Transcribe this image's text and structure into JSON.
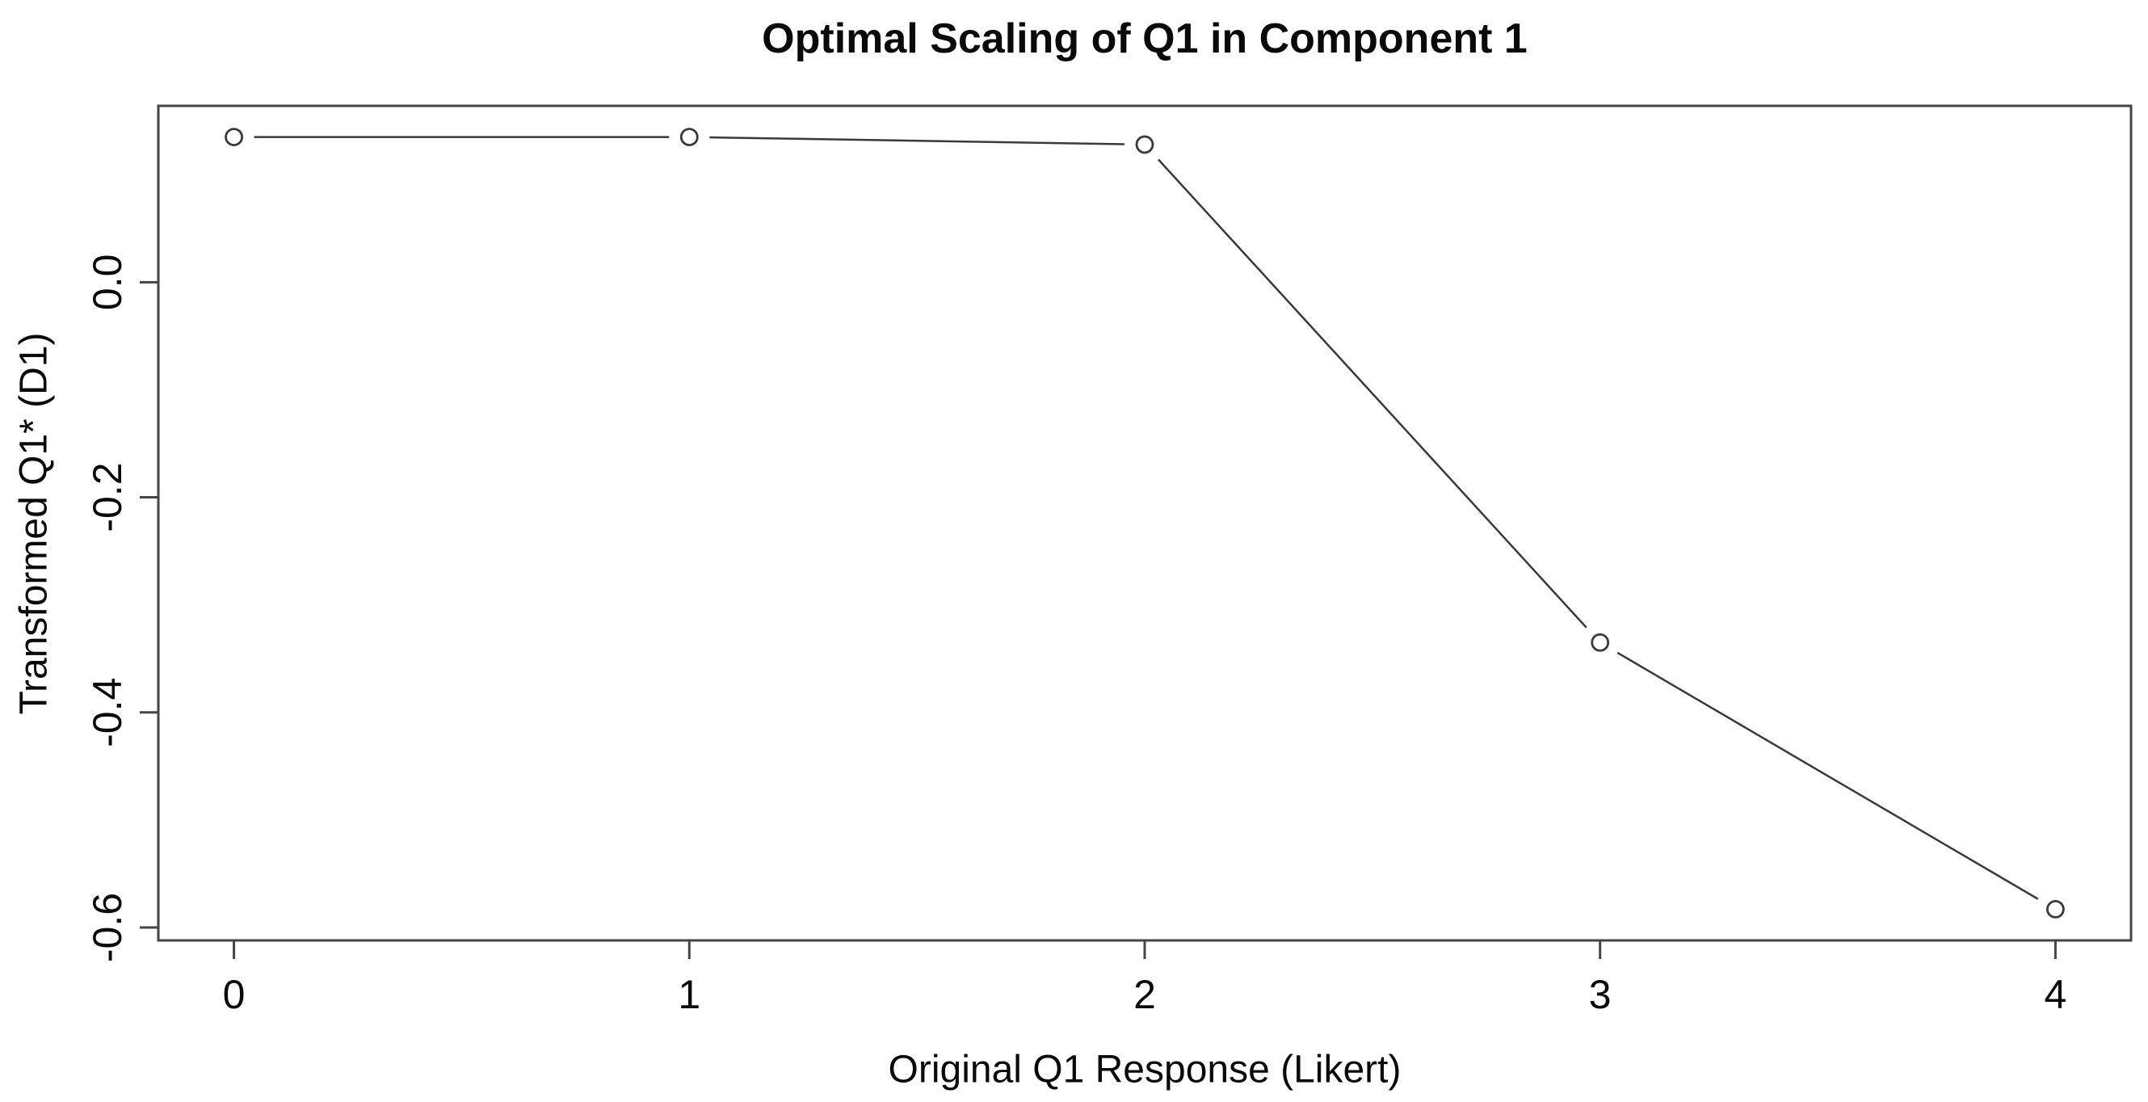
{
  "figure": {
    "background": "#ffffff"
  },
  "chart_data": {
    "type": "line",
    "title": "Optimal Scaling of Q1 in Component 1",
    "xlabel": "Original Q1 Response (Likert)",
    "ylabel": "Transformed Q1* (D1)",
    "x": [
      0,
      1,
      2,
      3,
      4
    ],
    "y": [
      0.135,
      0.135,
      0.128,
      -0.335,
      -0.583
    ],
    "x_tick_values": [
      0,
      1,
      2,
      3,
      4
    ],
    "x_tick_labels": [
      "0",
      "1",
      "2",
      "3",
      "4"
    ],
    "y_tick_values": [
      0.0,
      -0.2,
      -0.4,
      -0.6
    ],
    "y_tick_labels": [
      "0.0",
      "-0.2",
      "-0.4",
      "-0.6"
    ],
    "xlim": [
      -0.166,
      4.166
    ],
    "ylim": [
      -0.612,
      0.164
    ],
    "grid": false,
    "legend_position": "none",
    "marker": "open-circle",
    "line_type": "points-and-segments-with-gaps",
    "colors": {
      "box": "#454545",
      "tick": "#454545",
      "line": "#3a3a3a",
      "marker_stroke": "#3a3a3a",
      "marker_fill": "#ffffff",
      "text": "#0a0a0a",
      "background": "#ffffff"
    }
  }
}
